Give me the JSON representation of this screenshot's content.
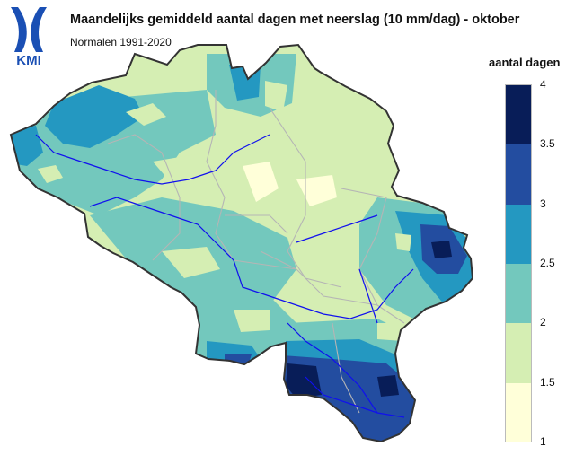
{
  "header": {
    "title": "Maandelijks gemiddeld aantal dagen met neerslag (10 mm/dag) - oktober",
    "subtitle": "Normalen 1991-2020",
    "logo_text": "KMI"
  },
  "legend": {
    "title": "aantal dagen",
    "bins": [
      {
        "from": 1,
        "to": 1.5,
        "color": "#ffffd9"
      },
      {
        "from": 1.5,
        "to": 2,
        "color": "#d5eeb3"
      },
      {
        "from": 2,
        "to": 2.5,
        "color": "#73c8bd"
      },
      {
        "from": 2.5,
        "to": 3,
        "color": "#2498c1"
      },
      {
        "from": 3,
        "to": 3.5,
        "color": "#234da0"
      },
      {
        "from": 3.5,
        "to": 4,
        "color": "#081d58"
      }
    ],
    "ticks": [
      "1",
      "1.5",
      "2",
      "2.5",
      "3",
      "3.5",
      "4"
    ]
  },
  "colors": {
    "border": "#333333",
    "province_lines": "#b5b5b5",
    "rivers": "#1010ee"
  }
}
